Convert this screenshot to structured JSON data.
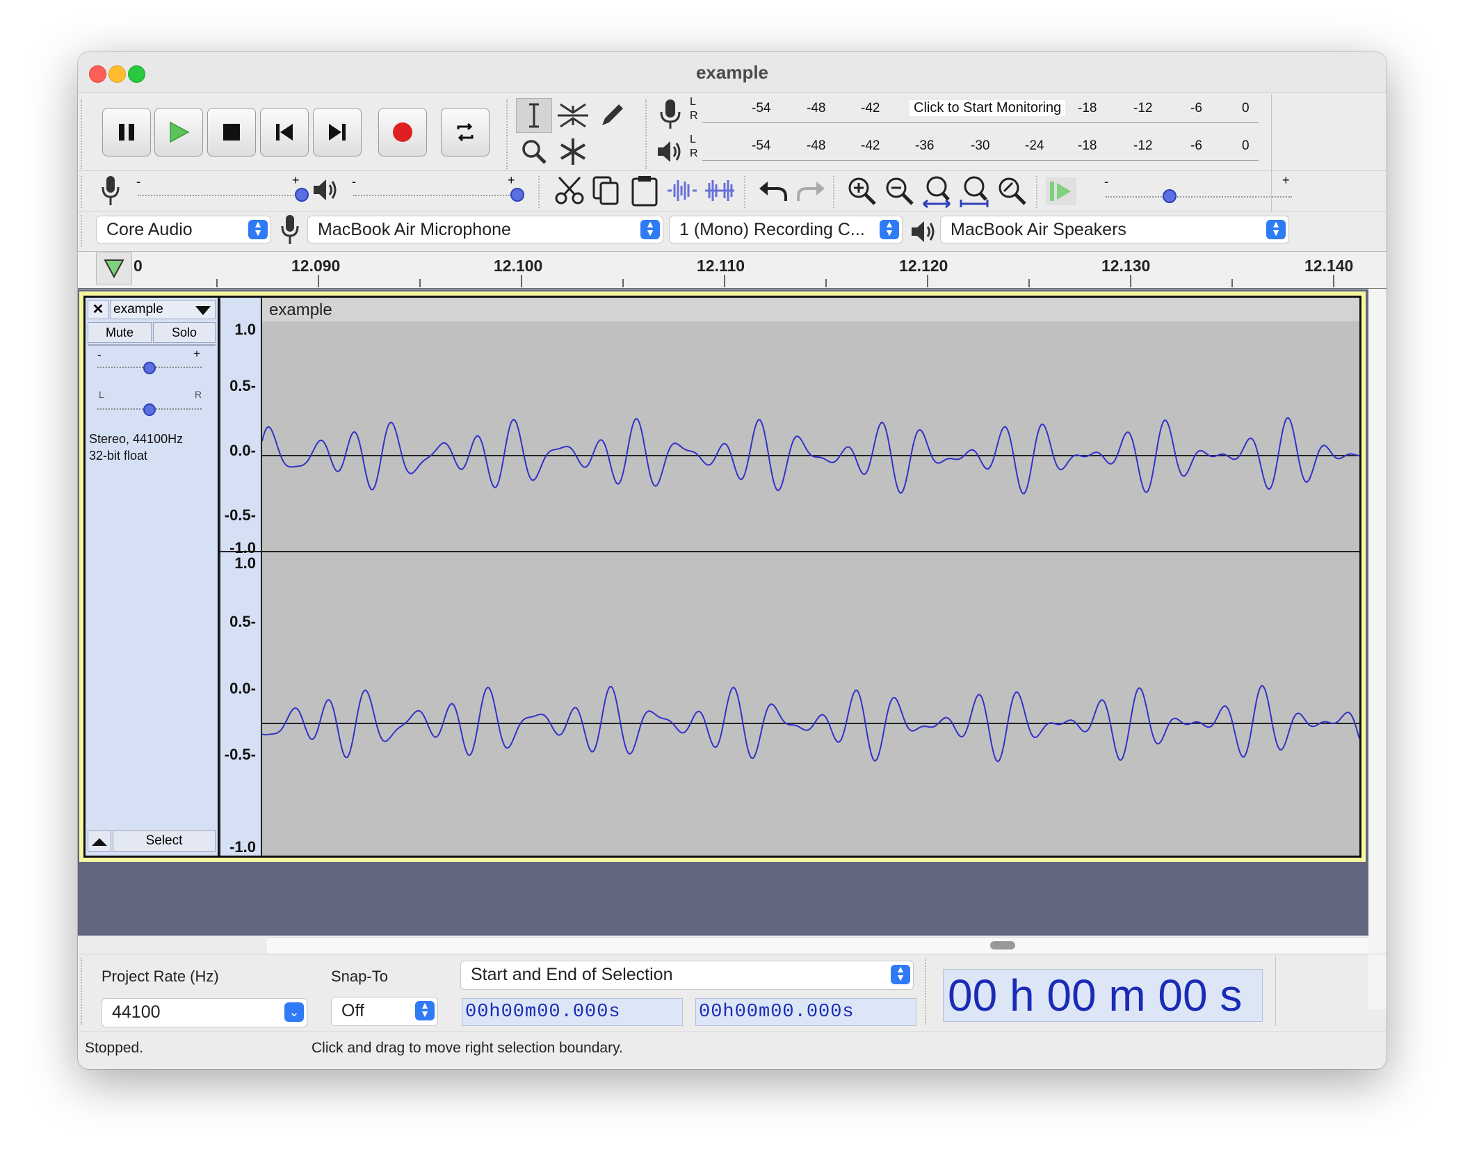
{
  "window": {
    "title": "example"
  },
  "meters": {
    "record_hint": "Click to Start Monitoring",
    "scale_top": [
      "-54",
      "-48",
      "-42",
      "-18",
      "-12",
      "-6",
      "0"
    ],
    "scale_bottom": [
      "-54",
      "-48",
      "-42",
      "-36",
      "-30",
      "-24",
      "-18",
      "-12",
      "-6",
      "0"
    ],
    "channel_l": "L",
    "channel_r": "R"
  },
  "sliders": {
    "minus": "-",
    "plus": "+"
  },
  "devices": {
    "host": "Core Audio",
    "input": "MacBook Air Microphone",
    "channels": "1 (Mono) Recording C...",
    "output": "MacBook Air Speakers"
  },
  "timeline": {
    "start_label": "0",
    "ticks": [
      "12.090",
      "12.100",
      "12.110",
      "12.120",
      "12.130",
      "12.140"
    ]
  },
  "track": {
    "name": "example",
    "clip_name": "example",
    "mute_label": "Mute",
    "solo_label": "Solo",
    "gain_minus": "-",
    "gain_plus": "+",
    "pan_left": "L",
    "pan_right": "R",
    "info_line1": "Stereo, 44100Hz",
    "info_line2": "32-bit float",
    "select_label": "Select",
    "scale": [
      "1.0",
      "0.5-",
      "0.0-",
      "-0.5-",
      "-1.0"
    ]
  },
  "selection_bar": {
    "project_rate_label": "Project Rate (Hz)",
    "project_rate_value": "44100",
    "snap_to_label": "Snap-To",
    "snap_to_value": "Off",
    "selection_mode": "Start and End of Selection",
    "start_time": "00h00m00.000s",
    "end_time": "00h00m00.000s",
    "big_time": "00 h 00 m 00 s"
  },
  "status": {
    "state": "Stopped.",
    "hint": "Click and drag to move right selection boundary."
  },
  "colors": {
    "waveform": "#3232c8",
    "track_background": "#c0c0c0",
    "track_panel": "#d6e0f5",
    "empty_area": "#62677f",
    "time_text": "#1a2bb5"
  }
}
